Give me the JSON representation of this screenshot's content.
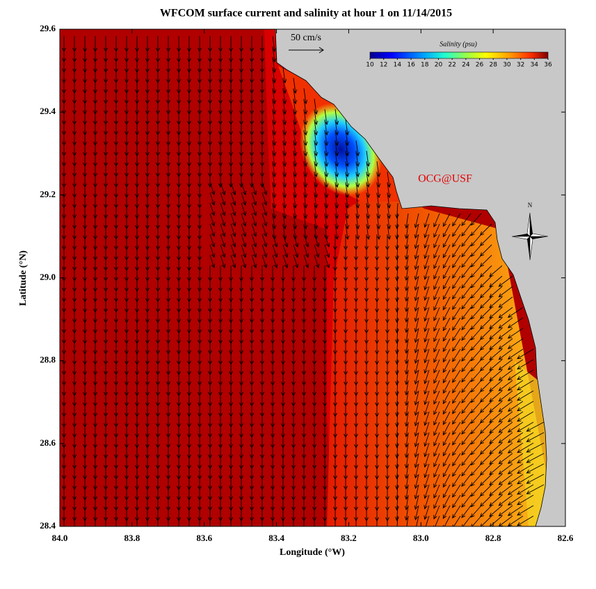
{
  "map": {
    "title": "WFCOM surface current and salinity at hour 1 on 11/14/2015",
    "x_label": "Longitude (°W)",
    "y_label": "Latitude (°N)",
    "xlim": [
      84.0,
      82.6
    ],
    "ylim": [
      28.4,
      29.6
    ],
    "xticks": [
      {
        "value": 84.0,
        "label": "84.0"
      },
      {
        "value": 83.8,
        "label": "83.8"
      },
      {
        "value": 83.6,
        "label": "83.6"
      },
      {
        "value": 83.4,
        "label": "83.4"
      },
      {
        "value": 83.2,
        "label": "83.2"
      },
      {
        "value": 83.0,
        "label": "83.0"
      },
      {
        "value": 82.8,
        "label": "82.8"
      },
      {
        "value": 82.6,
        "label": "82.6"
      }
    ],
    "yticks": [
      {
        "value": 28.4,
        "label": "28.4"
      },
      {
        "value": 28.6,
        "label": "28.6"
      },
      {
        "value": 28.8,
        "label": "28.8"
      },
      {
        "value": 29.0,
        "label": "29.0"
      },
      {
        "value": 29.2,
        "label": "29.2"
      },
      {
        "value": 29.4,
        "label": "29.4"
      },
      {
        "value": 29.6,
        "label": "29.6"
      }
    ],
    "scale_label": "50 cm/s",
    "colorbar": {
      "title": "Salinity (psu)",
      "lim": [
        10,
        36
      ],
      "ticks": [
        10,
        12,
        14,
        16,
        18,
        20,
        22,
        24,
        26,
        28,
        30,
        32,
        34,
        36
      ]
    },
    "credit": "OCG@USF",
    "compass_label": "N"
  }
}
